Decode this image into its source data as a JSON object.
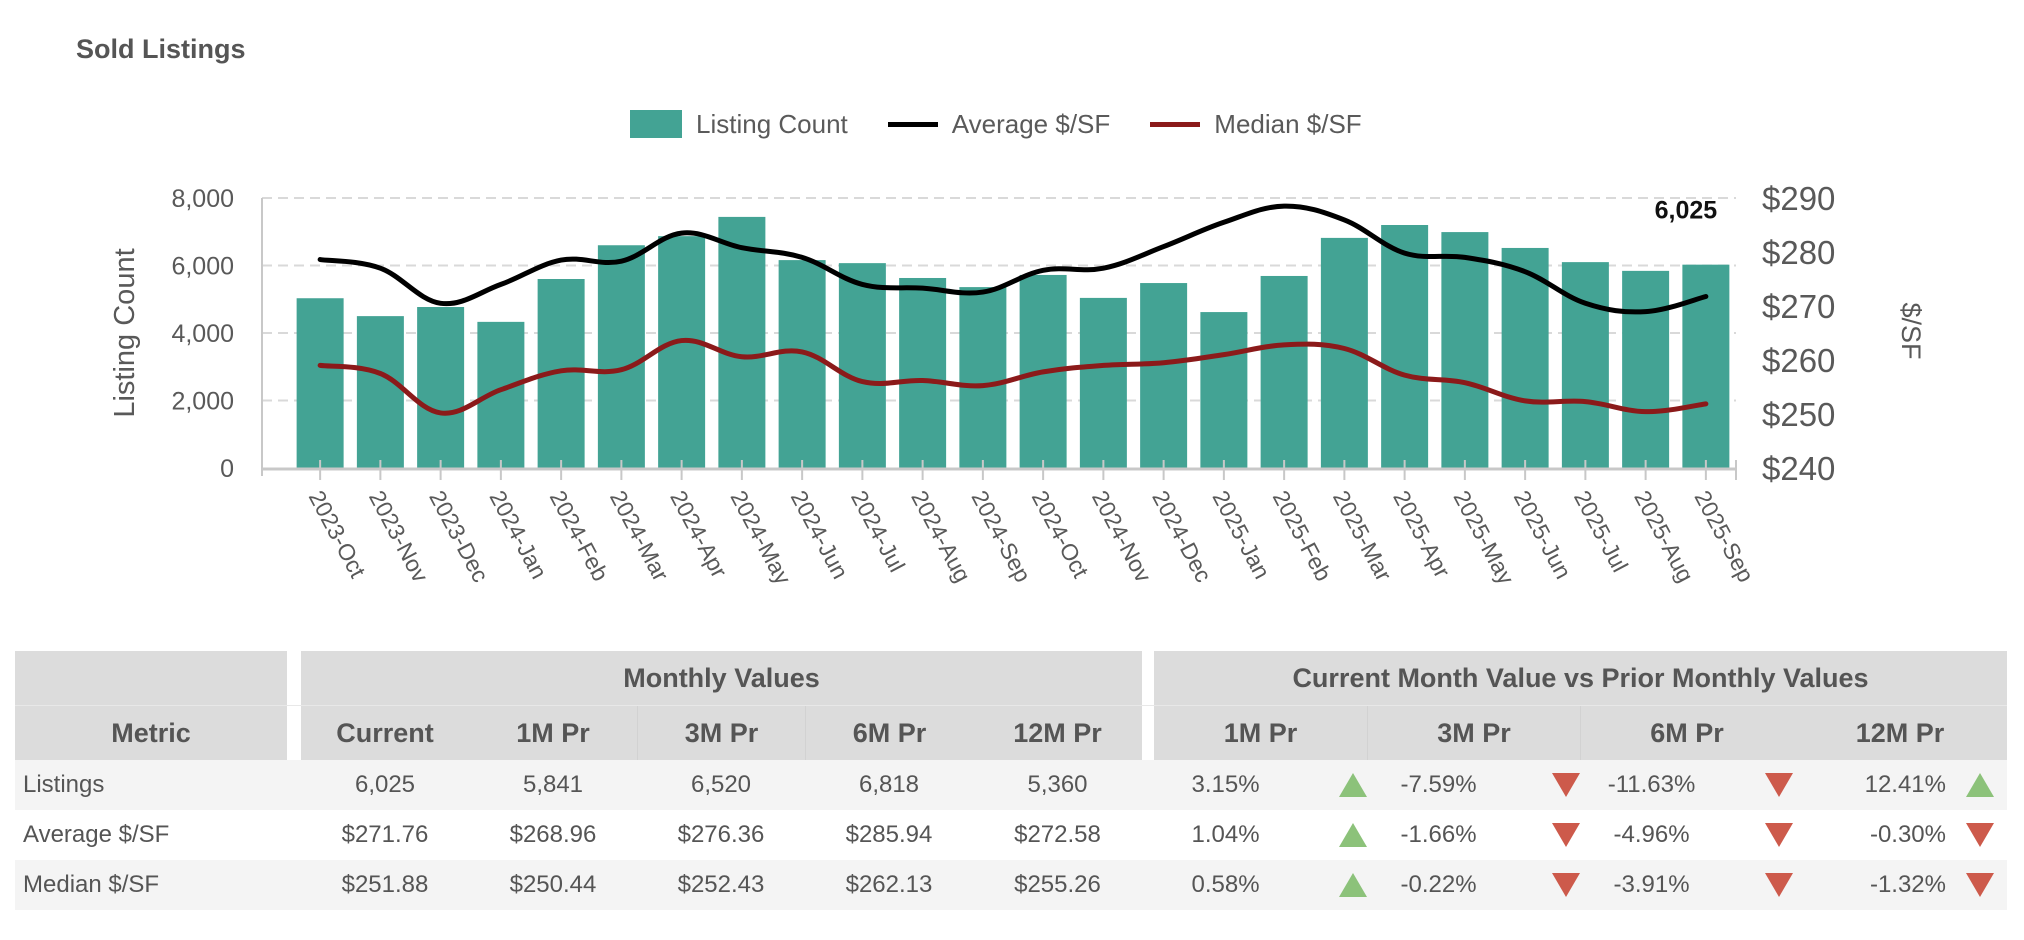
{
  "title": "Sold Listings",
  "legend": [
    {
      "label": "Listing Count",
      "type": "bar",
      "color": "#43a394"
    },
    {
      "label": "Average $/SF",
      "type": "line",
      "color": "#000000"
    },
    {
      "label": "Median $/SF",
      "type": "line",
      "color": "#8b1a1a"
    }
  ],
  "chart_data": {
    "type": "bar",
    "title": "Sold Listings",
    "categories": [
      "2023-Oct",
      "2023-Nov",
      "2023-Dec",
      "2024-Jan",
      "2024-Feb",
      "2024-Mar",
      "2024-Apr",
      "2024-May",
      "2024-Jun",
      "2024-Jul",
      "2024-Aug",
      "2024-Sep",
      "2024-Oct",
      "2024-Nov",
      "2024-Dec",
      "2025-Jan",
      "2025-Feb",
      "2025-Mar",
      "2025-Apr",
      "2025-May",
      "2025-Jun",
      "2025-Jul",
      "2025-Aug",
      "2025-Sep"
    ],
    "series": [
      {
        "name": "Listing Count",
        "type": "bar",
        "axis": "left",
        "color": "#43a394",
        "values": [
          5030,
          4500,
          4770,
          4330,
          5600,
          6600,
          6870,
          7440,
          6160,
          6070,
          5630,
          5360,
          5720,
          5040,
          5480,
          4620,
          5690,
          6818,
          7200,
          6990,
          6520,
          6100,
          5841,
          6025
        ]
      },
      {
        "name": "Average $/SF",
        "type": "line",
        "axis": "right",
        "color": "#000000",
        "values": [
          278.6,
          277.0,
          270.5,
          274.0,
          278.5,
          278.3,
          283.5,
          280.8,
          279.0,
          274.0,
          273.3,
          272.58,
          276.6,
          277.0,
          281.0,
          285.5,
          288.5,
          285.94,
          279.8,
          279.0,
          276.36,
          270.5,
          268.96,
          271.76
        ]
      },
      {
        "name": "Median $/SF",
        "type": "line",
        "axis": "right",
        "color": "#8b1a1a",
        "values": [
          259.0,
          257.5,
          250.2,
          254.5,
          258.0,
          258.2,
          263.6,
          260.6,
          261.5,
          256.0,
          256.2,
          255.26,
          257.8,
          259.0,
          259.5,
          261.0,
          262.8,
          262.13,
          257.2,
          255.8,
          252.43,
          252.3,
          250.44,
          251.88
        ]
      }
    ],
    "ylabel": "Listing Count",
    "ylim": [
      0,
      8000
    ],
    "yticks": [
      "0",
      "2,000",
      "4,000",
      "6,000",
      "8,000"
    ],
    "ylabel_right": "$/SF",
    "ylim_right": [
      240,
      290
    ],
    "yticks_right": [
      "$240",
      "$250",
      "$260",
      "$270",
      "$280",
      "$290"
    ],
    "data_label": {
      "category": "2025-Sep",
      "text": "6,025"
    },
    "grid": true,
    "legend_position": "top-center"
  },
  "table": {
    "group_headers": {
      "monthly": "Monthly Values",
      "compare": "Current Month Value vs Prior Monthly Values"
    },
    "metric_header": "Metric",
    "monthly_columns": [
      "Current",
      "1M Pr",
      "3M Pr",
      "6M Pr",
      "12M Pr"
    ],
    "compare_columns": [
      "1M Pr",
      "3M Pr",
      "6M Pr",
      "12M Pr"
    ],
    "rows": [
      {
        "metric": "Listings",
        "values": [
          "6,025",
          "5,841",
          "6,520",
          "6,818",
          "5,360"
        ],
        "changes": [
          {
            "pct": "3.15%",
            "dir": "up"
          },
          {
            "pct": "-7.59%",
            "dir": "down"
          },
          {
            "pct": "-11.63%",
            "dir": "down"
          },
          {
            "pct": "12.41%",
            "dir": "up"
          }
        ]
      },
      {
        "metric": "Average $/SF",
        "values": [
          "$271.76",
          "$268.96",
          "$276.36",
          "$285.94",
          "$272.58"
        ],
        "changes": [
          {
            "pct": "1.04%",
            "dir": "up"
          },
          {
            "pct": "-1.66%",
            "dir": "down"
          },
          {
            "pct": "-4.96%",
            "dir": "down"
          },
          {
            "pct": "-0.30%",
            "dir": "down"
          }
        ]
      },
      {
        "metric": "Median $/SF",
        "values": [
          "$251.88",
          "$250.44",
          "$252.43",
          "$262.13",
          "$255.26"
        ],
        "changes": [
          {
            "pct": "0.58%",
            "dir": "up"
          },
          {
            "pct": "-0.22%",
            "dir": "down"
          },
          {
            "pct": "-3.91%",
            "dir": "down"
          },
          {
            "pct": "-1.32%",
            "dir": "down"
          }
        ]
      }
    ],
    "colors": {
      "up": "#8cc27a",
      "down": "#cd5a4b"
    }
  }
}
